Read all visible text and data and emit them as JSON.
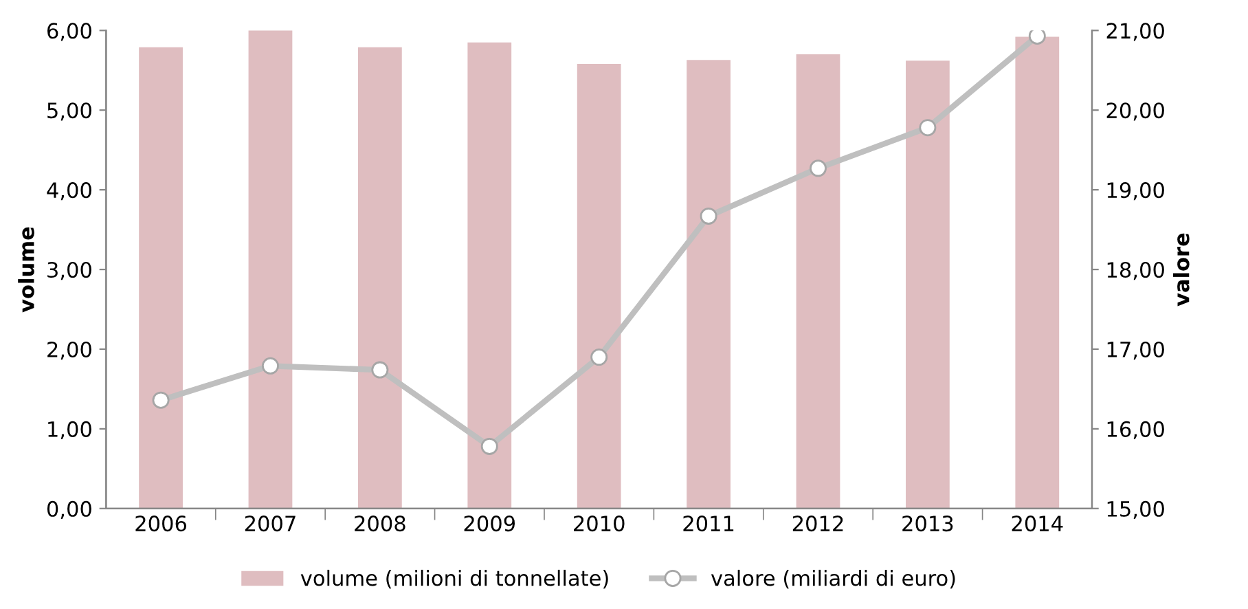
{
  "chart_data": {
    "type": "bar",
    "categories": [
      "2006",
      "2007",
      "2008",
      "2009",
      "2010",
      "2011",
      "2012",
      "2013",
      "2014"
    ],
    "series": [
      {
        "name": "volume (milioni di tonnellate)",
        "color": "#dfbdc0",
        "values": [
          5.79,
          6.0,
          5.79,
          5.85,
          5.58,
          5.63,
          5.7,
          5.62,
          5.92
        ]
      },
      {
        "name": "valore (miliardi di euro)",
        "type": "line",
        "axis": "y2",
        "color": "#bfbfbf",
        "marker": "circle",
        "values": [
          16.36,
          16.79,
          16.74,
          15.78,
          16.9,
          18.67,
          19.27,
          19.78,
          20.93
        ]
      }
    ],
    "ylabel": "volume",
    "y2label": "valore",
    "ylim": [
      0,
      6
    ],
    "yticks": [
      {
        "value": 0,
        "label": "0,00"
      },
      {
        "value": 1,
        "label": "1,00"
      },
      {
        "value": 2,
        "label": "2,00"
      },
      {
        "value": 3,
        "label": "3,00"
      },
      {
        "value": 4,
        "label": "4,00"
      },
      {
        "value": 5,
        "label": "5,00"
      },
      {
        "value": 6,
        "label": "6,00"
      }
    ],
    "y2lim": [
      15,
      21
    ],
    "y2ticks": [
      {
        "value": 15,
        "label": "15,00"
      },
      {
        "value": 16,
        "label": "16,00"
      },
      {
        "value": 17,
        "label": "17,00"
      },
      {
        "value": 18,
        "label": "18,00"
      },
      {
        "value": 19,
        "label": "19,00"
      },
      {
        "value": 20,
        "label": "20,00"
      },
      {
        "value": 21,
        "label": "21,00"
      }
    ],
    "legend": "bottom",
    "grid": false
  }
}
